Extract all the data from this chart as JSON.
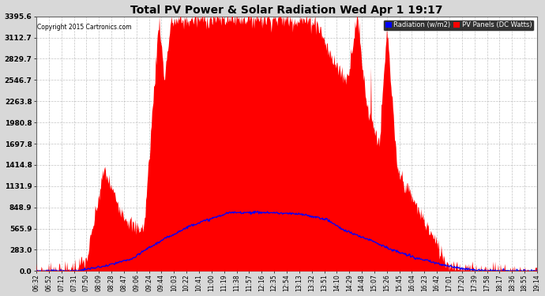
{
  "title": "Total PV Power & Solar Radiation Wed Apr 1 19:17",
  "copyright": "Copyright 2015 Cartronics.com",
  "yticks": [
    0.0,
    283.0,
    565.9,
    848.9,
    1131.9,
    1414.8,
    1697.8,
    1980.8,
    2263.8,
    2546.7,
    2829.7,
    3112.7,
    3395.6
  ],
  "ymax": 3395.6,
  "background_color": "#d8d8d8",
  "plot_bg_color": "#ffffff",
  "grid_color": "#aaaaaa",
  "red_fill_color": "#ff0000",
  "blue_line_color": "#0000ff",
  "legend_radiation_bg": "#0000ff",
  "legend_pv_bg": "#ff0000",
  "xtick_labels": [
    "06:32",
    "06:52",
    "07:12",
    "07:31",
    "07:50",
    "08:09",
    "08:28",
    "08:47",
    "09:06",
    "09:24",
    "09:44",
    "10:03",
    "10:22",
    "10:41",
    "11:00",
    "11:19",
    "11:38",
    "11:57",
    "12:16",
    "12:35",
    "12:54",
    "13:13",
    "13:32",
    "13:51",
    "14:10",
    "14:29",
    "14:48",
    "15:07",
    "15:26",
    "15:45",
    "16:04",
    "16:23",
    "16:42",
    "17:01",
    "17:20",
    "17:39",
    "17:58",
    "18:17",
    "18:36",
    "18:55",
    "19:14"
  ],
  "n_points": 820
}
